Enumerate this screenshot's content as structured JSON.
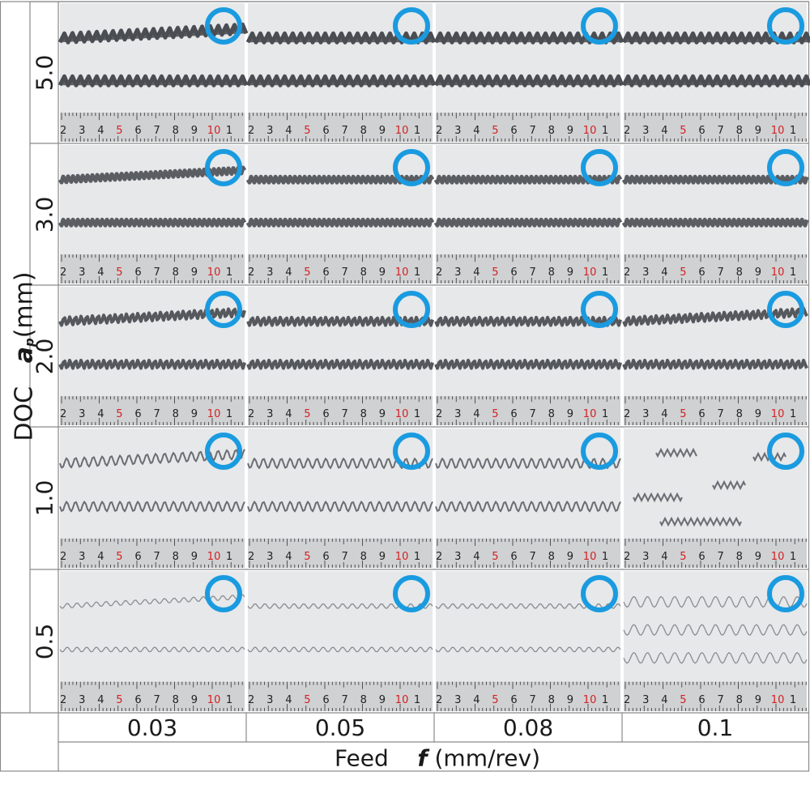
{
  "y_axis": {
    "name": "DOC",
    "symbol": "a",
    "subscript": "p",
    "unit": "(mm)"
  },
  "x_axis": {
    "name": "Feed",
    "symbol": "f",
    "unit": "(mm/rev)"
  },
  "rows": [
    "5.0",
    "3.0",
    "2.0",
    "1.0",
    "0.5"
  ],
  "columns": [
    "0.03",
    "0.05",
    "0.08",
    "0.1"
  ],
  "ruler_numbers": [
    "2",
    "3",
    "4",
    "5",
    "6",
    "7",
    "8",
    "9",
    "10",
    "1",
    "2"
  ],
  "colors": {
    "marker_circle": "#1a9be0",
    "ruler_red": "#d42020",
    "photo_bg": "#e6e8ea"
  },
  "marker": "blue ring in the top-right corner of every photo"
}
